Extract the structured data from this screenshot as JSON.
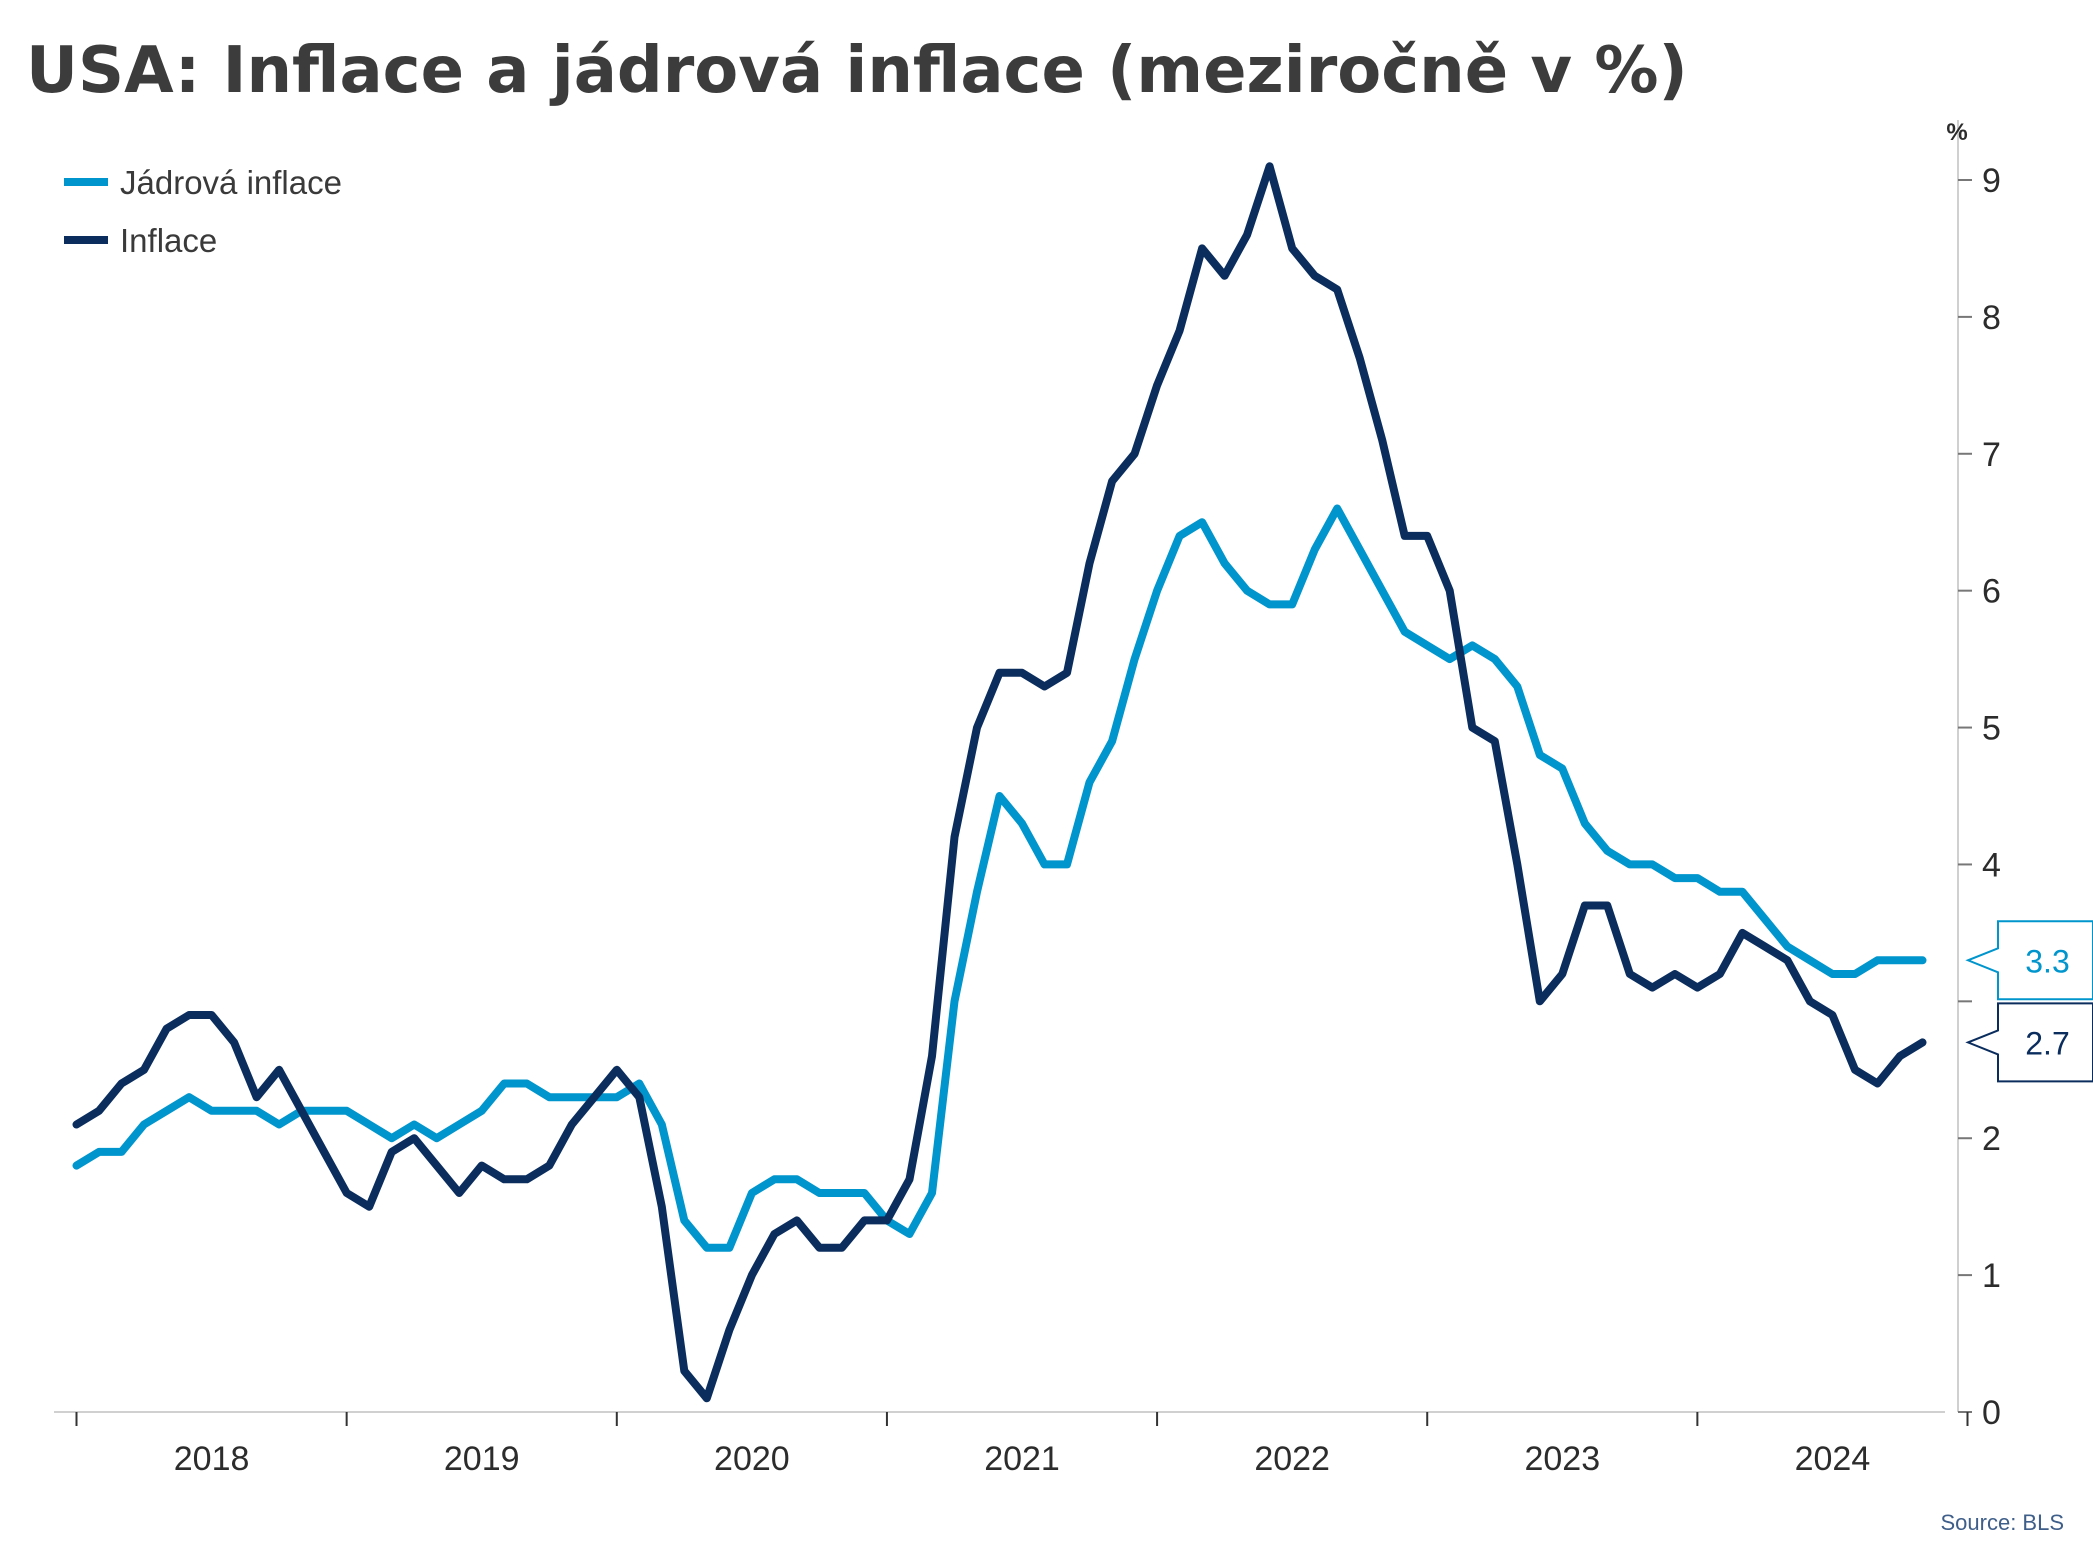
{
  "chart_data": {
    "type": "line",
    "title": "USA: Inflace a jádrová inflace (meziročně v %)",
    "y_unit": "%",
    "ylim": [
      0,
      9
    ],
    "yticks": [
      0,
      1,
      2,
      3,
      4,
      5,
      6,
      7,
      8,
      9
    ],
    "ytick_labels": [
      "0",
      "1",
      "2",
      "",
      "4",
      "5",
      "6",
      "7",
      "8",
      "9"
    ],
    "xlim": [
      "2017-12",
      "2024-12"
    ],
    "x_labels": [
      "2018",
      "2019",
      "2020",
      "2021",
      "2022",
      "2023",
      "2024"
    ],
    "x_start": "2018-01",
    "legend_position": "top-left",
    "grid": false,
    "series": [
      {
        "name": "Jádrová inflace",
        "color": "#0095cc",
        "last_label": "3.3",
        "values": [
          1.8,
          1.9,
          1.9,
          2.1,
          2.2,
          2.3,
          2.2,
          2.2,
          2.2,
          2.1,
          2.2,
          2.2,
          2.2,
          2.1,
          2.0,
          2.1,
          2.0,
          2.1,
          2.2,
          2.4,
          2.4,
          2.3,
          2.3,
          2.3,
          2.3,
          2.4,
          2.1,
          1.4,
          1.2,
          1.2,
          1.6,
          1.7,
          1.7,
          1.6,
          1.6,
          1.6,
          1.4,
          1.3,
          1.6,
          3.0,
          3.8,
          4.5,
          4.3,
          4.0,
          4.0,
          4.6,
          4.9,
          5.5,
          6.0,
          6.4,
          6.5,
          6.2,
          6.0,
          5.9,
          5.9,
          6.3,
          6.6,
          6.3,
          6.0,
          5.7,
          5.6,
          5.5,
          5.6,
          5.5,
          5.3,
          4.8,
          4.7,
          4.3,
          4.1,
          4.0,
          4.0,
          3.9,
          3.9,
          3.8,
          3.8,
          3.6,
          3.4,
          3.3,
          3.2,
          3.2,
          3.3,
          3.3,
          3.3
        ]
      },
      {
        "name": "Inflace",
        "color": "#0a2d5e",
        "last_label": "2.7",
        "values": [
          2.1,
          2.2,
          2.4,
          2.5,
          2.8,
          2.9,
          2.9,
          2.7,
          2.3,
          2.5,
          2.2,
          1.9,
          1.6,
          1.5,
          1.9,
          2.0,
          1.8,
          1.6,
          1.8,
          1.7,
          1.7,
          1.8,
          2.1,
          2.3,
          2.5,
          2.3,
          1.5,
          0.3,
          0.1,
          0.6,
          1.0,
          1.3,
          1.4,
          1.2,
          1.2,
          1.4,
          1.4,
          1.7,
          2.6,
          4.2,
          5.0,
          5.4,
          5.4,
          5.3,
          5.4,
          6.2,
          6.8,
          7.0,
          7.5,
          7.9,
          8.5,
          8.3,
          8.6,
          9.1,
          8.5,
          8.3,
          8.2,
          7.7,
          7.1,
          6.4,
          6.4,
          6.0,
          5.0,
          4.9,
          4.0,
          3.0,
          3.2,
          3.7,
          3.7,
          3.2,
          3.1,
          3.2,
          3.1,
          3.2,
          3.5,
          3.4,
          3.3,
          3.0,
          2.9,
          2.5,
          2.4,
          2.6,
          2.7
        ]
      }
    ]
  },
  "source": "Source: BLS"
}
